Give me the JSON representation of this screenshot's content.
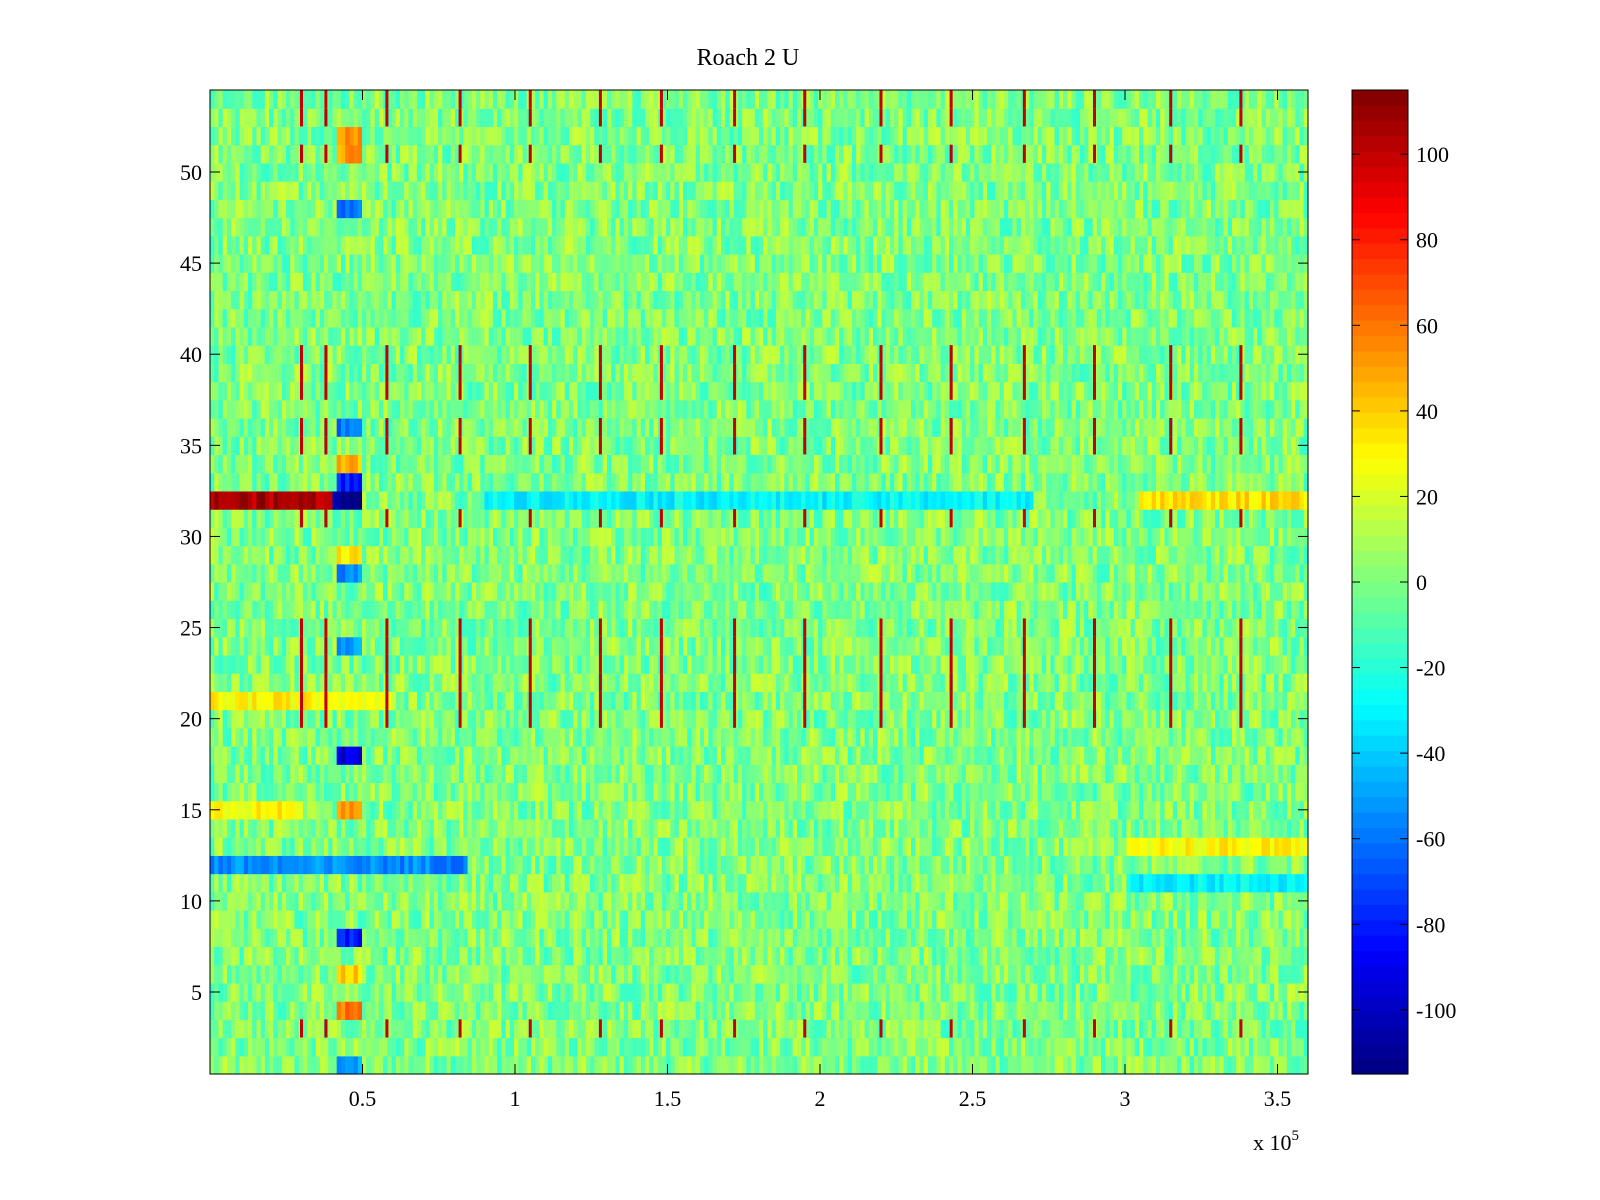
{
  "chart_data": {
    "type": "heatmap",
    "title": "Roach 2 U",
    "xlabel": "",
    "ylabel": "",
    "x_multiplier_label": {
      "base": "x 10",
      "exponent": "5"
    },
    "xlim": [
      0,
      3.6
    ],
    "ylim": [
      0.5,
      54.5
    ],
    "rows": 54,
    "x_ticks": [
      {
        "value": 0.5,
        "label": "0.5"
      },
      {
        "value": 1,
        "label": "1"
      },
      {
        "value": 1.5,
        "label": "1.5"
      },
      {
        "value": 2,
        "label": "2"
      },
      {
        "value": 2.5,
        "label": "2.5"
      },
      {
        "value": 3,
        "label": "3"
      },
      {
        "value": 3.5,
        "label": "3.5"
      }
    ],
    "y_ticks": [
      {
        "value": 5,
        "label": "5"
      },
      {
        "value": 10,
        "label": "10"
      },
      {
        "value": 15,
        "label": "15"
      },
      {
        "value": 20,
        "label": "20"
      },
      {
        "value": 25,
        "label": "25"
      },
      {
        "value": 30,
        "label": "30"
      },
      {
        "value": 35,
        "label": "35"
      },
      {
        "value": 40,
        "label": "40"
      },
      {
        "value": 45,
        "label": "45"
      },
      {
        "value": 50,
        "label": "50"
      }
    ],
    "colorbar": {
      "colormap": "jet",
      "range": [
        -115,
        115
      ],
      "ticks": [
        {
          "value": 100,
          "label": "100"
        },
        {
          "value": 80,
          "label": "80"
        },
        {
          "value": 60,
          "label": "60"
        },
        {
          "value": 40,
          "label": "40"
        },
        {
          "value": 20,
          "label": "20"
        },
        {
          "value": 0,
          "label": "0"
        },
        {
          "value": -20,
          "label": "-20"
        },
        {
          "value": -40,
          "label": "-40"
        },
        {
          "value": -60,
          "label": "-60"
        },
        {
          "value": -80,
          "label": "-80"
        },
        {
          "value": -100,
          "label": "-100"
        }
      ]
    },
    "background_level": 0,
    "noise_amplitude": 18,
    "row_features": [
      {
        "row": 32,
        "x_start": 0.0,
        "x_end": 0.4,
        "value": 105
      },
      {
        "row": 32,
        "x_start": 0.4,
        "x_end": 0.5,
        "value": -110
      },
      {
        "row": 32,
        "x_start": 0.9,
        "x_end": 2.7,
        "value": -30
      },
      {
        "row": 32,
        "x_start": 3.05,
        "x_end": 3.6,
        "value": 35
      },
      {
        "row": 12,
        "x_start": 0.0,
        "x_end": 0.85,
        "value": -55
      },
      {
        "row": 13,
        "x_start": 3.0,
        "x_end": 3.6,
        "value": 30
      },
      {
        "row": 11,
        "x_start": 3.0,
        "x_end": 3.6,
        "value": -30
      },
      {
        "row": 21,
        "x_start": 0.0,
        "x_end": 0.6,
        "value": 30
      },
      {
        "row": 15,
        "x_start": 0.0,
        "x_end": 0.3,
        "value": 30
      },
      {
        "row": 18,
        "x_start": 0.42,
        "x_end": 0.5,
        "value": -95
      },
      {
        "row": 8,
        "x_start": 0.42,
        "x_end": 0.5,
        "value": -80
      },
      {
        "row": 6,
        "x_start": 0.42,
        "x_end": 0.5,
        "value": 40
      },
      {
        "row": 4,
        "x_start": 0.42,
        "x_end": 0.5,
        "value": 60
      },
      {
        "row": 52,
        "x_start": 0.42,
        "x_end": 0.5,
        "value": 55
      },
      {
        "row": 51,
        "x_start": 0.42,
        "x_end": 0.5,
        "value": 50
      },
      {
        "row": 48,
        "x_start": 0.42,
        "x_end": 0.5,
        "value": -60
      },
      {
        "row": 36,
        "x_start": 0.42,
        "x_end": 0.5,
        "value": -60
      },
      {
        "row": 33,
        "x_start": 0.42,
        "x_end": 0.5,
        "value": -80
      },
      {
        "row": 34,
        "x_start": 0.42,
        "x_end": 0.5,
        "value": 45
      },
      {
        "row": 28,
        "x_start": 0.42,
        "x_end": 0.5,
        "value": -55
      },
      {
        "row": 29,
        "x_start": 0.42,
        "x_end": 0.5,
        "value": 35
      },
      {
        "row": 24,
        "x_start": 0.42,
        "x_end": 0.5,
        "value": -50
      },
      {
        "row": 15,
        "x_start": 0.42,
        "x_end": 0.5,
        "value": 55
      },
      {
        "row": 1,
        "x_start": 0.42,
        "x_end": 0.5,
        "value": -50
      }
    ],
    "periodic_spikes": {
      "x_positions": [
        0.3,
        0.38,
        0.58,
        0.82,
        1.05,
        1.28,
        1.48,
        1.72,
        1.95,
        2.2,
        2.43,
        2.67,
        2.9,
        3.15,
        3.38
      ],
      "rows": [
        3,
        22,
        23,
        24,
        25,
        20,
        21,
        35,
        36,
        38,
        39,
        31,
        40,
        53,
        51,
        54
      ],
      "value": 100
    }
  }
}
